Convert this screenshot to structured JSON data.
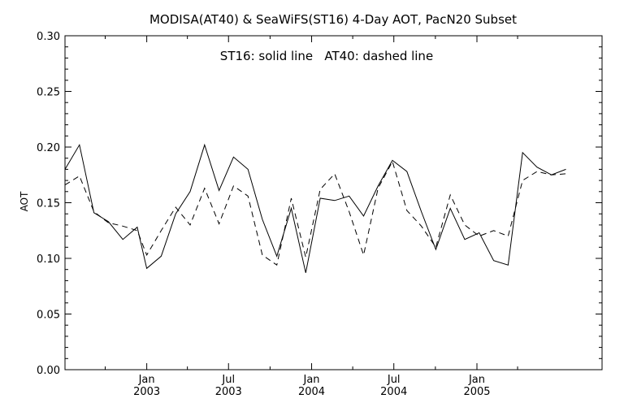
{
  "chart_data": {
    "type": "line",
    "title": "MODISA(AT40) & SeaWiFS(ST16) 4-Day AOT, PacN20 Subset",
    "annotation": "ST16: solid line   AT40: dashed line",
    "ylabel": "AOT",
    "xlabel": "",
    "ylim": [
      0.0,
      0.3
    ],
    "y_ticks": [
      "0.00",
      "0.05",
      "0.10",
      "0.15",
      "0.20",
      "0.25",
      "0.30"
    ],
    "y_tick_values": [
      0.0,
      0.05,
      0.1,
      0.15,
      0.2,
      0.25,
      0.3
    ],
    "xlim": [
      "2002-07-04",
      "2005-10-05"
    ],
    "x_major_ticks": [
      {
        "date": "2003-01-01",
        "month": "Jan",
        "year": "2003"
      },
      {
        "date": "2003-07-01",
        "month": "Jul",
        "year": "2003"
      },
      {
        "date": "2004-01-01",
        "month": "Jan",
        "year": "2004"
      },
      {
        "date": "2004-07-01",
        "month": "Jul",
        "year": "2004"
      },
      {
        "date": "2005-01-01",
        "month": "Jan",
        "year": "2005"
      }
    ],
    "x_minor_ticks": [
      "2002-10-01",
      "2003-04-01",
      "2003-10-01",
      "2004-04-01",
      "2004-10-01",
      "2005-04-01"
    ],
    "x": [
      "2002-07-04",
      "2002-08-05",
      "2002-09-06",
      "2002-10-08",
      "2002-11-09",
      "2002-12-11",
      "2003-01-01",
      "2003-02-02",
      "2003-03-06",
      "2003-04-07",
      "2003-05-09",
      "2003-06-10",
      "2003-07-12",
      "2003-08-13",
      "2003-09-14",
      "2003-10-16",
      "2003-11-17",
      "2003-12-19",
      "2004-01-20",
      "2004-02-21",
      "2004-03-24",
      "2004-04-25",
      "2004-05-27",
      "2004-06-28",
      "2004-07-30",
      "2004-08-31",
      "2004-10-02",
      "2004-11-03",
      "2004-12-05",
      "2005-01-06",
      "2005-02-07",
      "2005-03-11",
      "2005-04-12",
      "2005-05-14",
      "2005-06-15",
      "2005-07-17"
    ],
    "series": [
      {
        "name": "ST16",
        "style": "solid",
        "values": [
          0.18,
          0.202,
          0.141,
          0.133,
          0.117,
          0.128,
          0.091,
          0.102,
          0.14,
          0.16,
          0.202,
          0.161,
          0.191,
          0.18,
          0.135,
          0.102,
          0.145,
          0.087,
          0.154,
          0.152,
          0.156,
          0.138,
          0.165,
          0.188,
          0.178,
          0.142,
          0.108,
          0.145,
          0.117,
          0.123,
          0.098,
          0.094,
          0.195,
          0.182,
          0.175,
          0.18
        ]
      },
      {
        "name": "AT40",
        "style": "dashed",
        "values": [
          0.166,
          0.174,
          0.142,
          0.132,
          0.129,
          0.125,
          0.103,
          0.125,
          0.146,
          0.13,
          0.163,
          0.131,
          0.165,
          0.156,
          0.103,
          0.094,
          0.154,
          0.101,
          0.162,
          0.176,
          0.142,
          0.103,
          0.163,
          0.187,
          0.143,
          0.129,
          0.11,
          0.157,
          0.13,
          0.12,
          0.125,
          0.12,
          0.17,
          0.178,
          0.175,
          0.176
        ]
      }
    ],
    "colors": {
      "line": "#000000",
      "background": "#ffffff"
    },
    "grid": false
  }
}
